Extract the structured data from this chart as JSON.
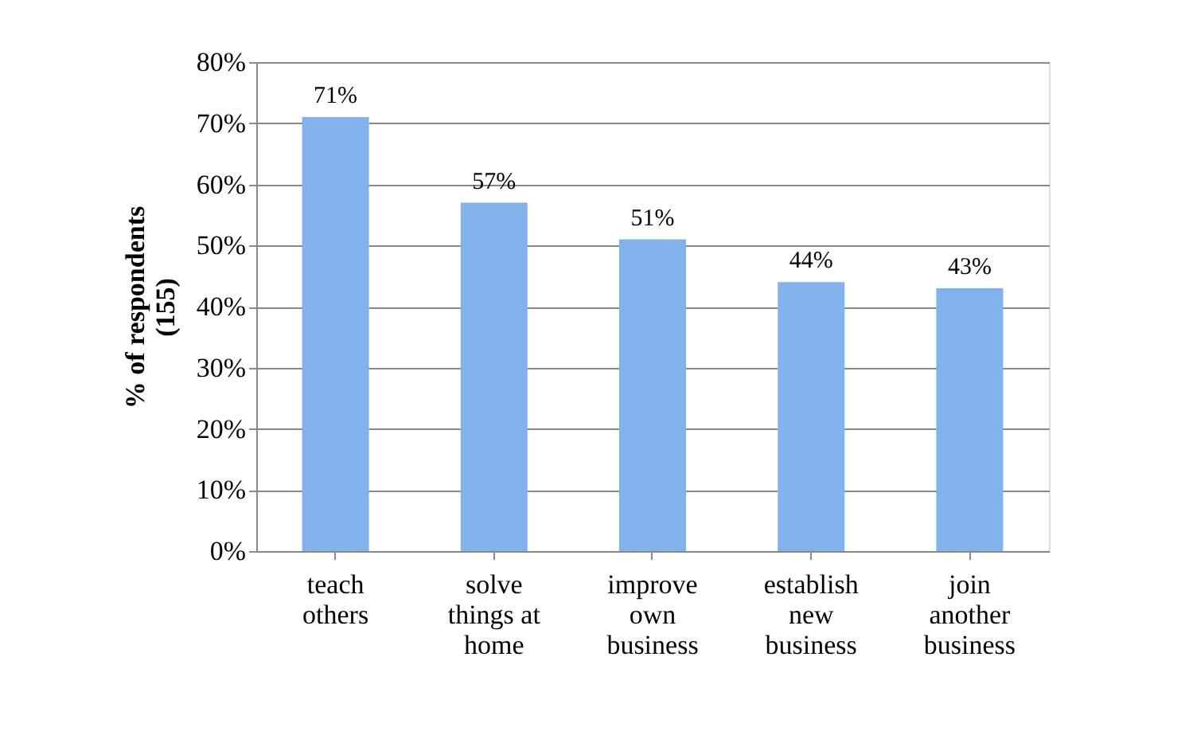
{
  "chart_data": {
    "type": "bar",
    "ylabel": "% of respondents\n(155)",
    "categories": [
      "teach\nothers",
      "solve\nthings at\nhome",
      "improve\nown\nbusiness",
      "establish\nnew\nbusiness",
      "join\nanother\nbusiness"
    ],
    "values": [
      71,
      57,
      51,
      44,
      43
    ],
    "value_labels": [
      "71%",
      "57%",
      "51%",
      "44%",
      "43%"
    ],
    "color": "#82b2ec",
    "ylim": [
      0,
      80
    ],
    "yticks": [
      {
        "value": 0,
        "label": "0%"
      },
      {
        "value": 10,
        "label": "10%"
      },
      {
        "value": 20,
        "label": "20%"
      },
      {
        "value": 30,
        "label": "30%"
      },
      {
        "value": 40,
        "label": "40%"
      },
      {
        "value": 50,
        "label": "50%"
      },
      {
        "value": 60,
        "label": "60%"
      },
      {
        "value": 70,
        "label": "70%"
      },
      {
        "value": 80,
        "label": "80%"
      }
    ],
    "grid": "y"
  }
}
